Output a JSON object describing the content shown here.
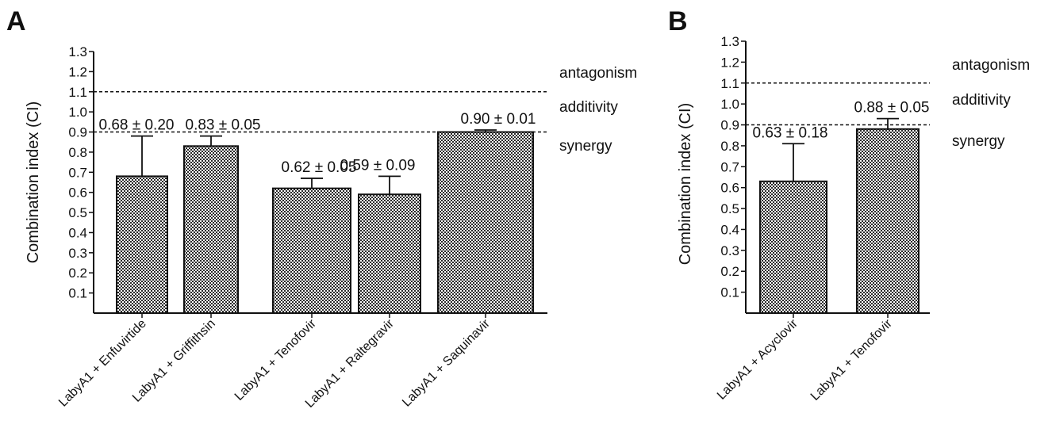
{
  "chart_data": [
    {
      "type": "bar",
      "panel": "A",
      "ylabel": "Combination index (CI)",
      "ylim": [
        0,
        1.3
      ],
      "yticks": [
        "0.1",
        "0.2",
        "0.3",
        "0.4",
        "0.5",
        "0.6",
        "0.7",
        "0.8",
        "0.9",
        "1.0",
        "1.1",
        "1.2",
        "1.3"
      ],
      "categories": [
        "LabyA1 + Enfuvirtide",
        "LabyA1 + Griffithsin",
        "LabyA1 + Tenofovir",
        "LabyA1 + Raltegravir",
        "LabyA1 + Saquinavir"
      ],
      "values": [
        0.68,
        0.83,
        0.62,
        0.59,
        0.9
      ],
      "errors": [
        0.2,
        0.05,
        0.05,
        0.09,
        0.01
      ],
      "value_labels": [
        "0.68 ± 0.20",
        "0.83 ± 0.05",
        "0.62 ± 0.05",
        "0.59 ± 0.09",
        "0.90 ± 0.01"
      ],
      "reference_lines": [
        1.1,
        0.9
      ],
      "region_labels": [
        "antagonism",
        "additivity",
        "synergy"
      ],
      "bar_fill": "checkered",
      "grid": false
    },
    {
      "type": "bar",
      "panel": "B",
      "ylabel": "Combination index (CI)",
      "ylim": [
        0,
        1.3
      ],
      "yticks": [
        "0.1",
        "0.2",
        "0.3",
        "0.4",
        "0.5",
        "0.6",
        "0.7",
        "0.8",
        "0.9",
        "1.0",
        "1.1",
        "1.2",
        "1.3"
      ],
      "categories": [
        "LabyA1 + Acyclovir",
        "LabyA1 + Tenofovir"
      ],
      "values": [
        0.63,
        0.88
      ],
      "errors": [
        0.18,
        0.05
      ],
      "value_labels": [
        "0.63 ± 0.18",
        "0.88 ± 0.05"
      ],
      "reference_lines": [
        1.1,
        0.9
      ],
      "region_labels": [
        "antagonism",
        "additivity",
        "synergy"
      ],
      "bar_fill": "checkered",
      "grid": false
    }
  ],
  "colors": {
    "ink": "#111111",
    "checker_dark": "#2a2a2a",
    "checker_light": "#ffffff"
  }
}
